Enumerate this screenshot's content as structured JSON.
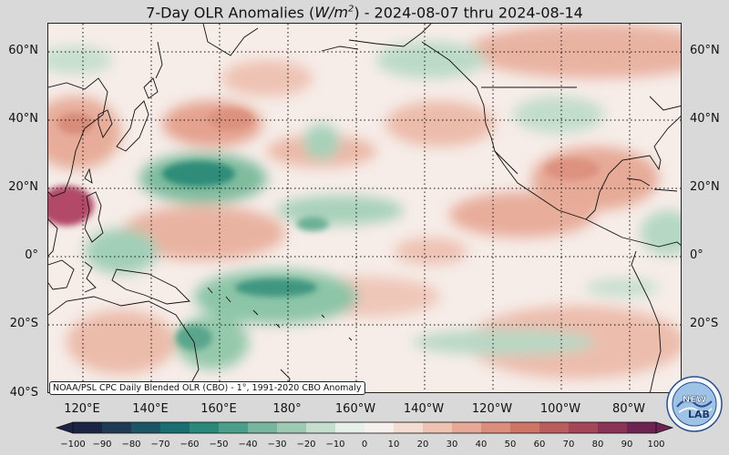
{
  "title": {
    "prefix": "7-Day OLR Anomalies (",
    "unit_base": "W/m",
    "unit_exp": "2",
    "suffix": ") - 2024-08-07 thru 2024-08-14"
  },
  "latitude_labels": [
    "60°N",
    "40°N",
    "20°N",
    "0°",
    "20°S",
    "40°S"
  ],
  "longitude_labels": [
    "120°E",
    "140°E",
    "160°E",
    "180°",
    "160°W",
    "140°W",
    "120°W",
    "100°W",
    "80°W"
  ],
  "credit": "NOAA/PSL CPC Daily Blended OLR (CBO) - 1°, 1991-2020 CBO Anomaly",
  "logo": {
    "top_text": "NEW",
    "bottom_text": "LAB"
  },
  "colorbar": {
    "ticks": [
      "−100",
      "−90",
      "−80",
      "−70",
      "−60",
      "−50",
      "−40",
      "−30",
      "−20",
      "−10",
      "0",
      "10",
      "20",
      "30",
      "40",
      "50",
      "60",
      "70",
      "80",
      "90",
      "100"
    ],
    "colors": [
      "#1b2444",
      "#1f3a55",
      "#1d5566",
      "#196e70",
      "#2a8a7a",
      "#4c9f8a",
      "#77b59e",
      "#9ecab4",
      "#c4ddcc",
      "#e6efe8",
      "#f7f1ee",
      "#f5dcd2",
      "#efc3b3",
      "#e7a996",
      "#db8e7c",
      "#cd7566",
      "#bb5d5c",
      "#a54658",
      "#8b3357",
      "#6e2452"
    ]
  },
  "colors": {
    "neutral": "#f6ece8",
    "positive": "#e2a896",
    "strong_positive": "#b24a67",
    "negative": "#8cc5a7",
    "strong_negative": "#1f7f6c",
    "land_line": "#111111"
  }
}
